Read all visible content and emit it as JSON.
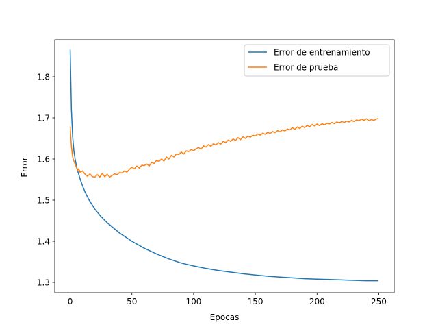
{
  "chart_data": {
    "type": "line",
    "title": "",
    "xlabel": "Epocas",
    "ylabel": "Error",
    "xlim": [
      -12.5,
      262.5
    ],
    "ylim": [
      1.275,
      1.89
    ],
    "xticks": [
      0,
      50,
      100,
      150,
      200,
      250
    ],
    "xtick_labels": [
      "0",
      "50",
      "100",
      "150",
      "200",
      "250"
    ],
    "yticks": [
      1.3,
      1.4,
      1.5,
      1.6,
      1.7,
      1.8
    ],
    "ytick_labels": [
      "1.3",
      "1.4",
      "1.5",
      "1.6",
      "1.7",
      "1.8"
    ],
    "grid": false,
    "legend_position": "top-right",
    "series": [
      {
        "name": "Error de entrenamiento",
        "color": "#1f77b4",
        "x": [
          0,
          1,
          2,
          3,
          4,
          5,
          6,
          8,
          10,
          12,
          15,
          20,
          25,
          30,
          40,
          50,
          60,
          70,
          80,
          90,
          100,
          110,
          120,
          130,
          140,
          150,
          160,
          170,
          180,
          190,
          200,
          210,
          220,
          230,
          240,
          249
        ],
        "y": [
          1.865,
          1.72,
          1.655,
          1.62,
          1.6,
          1.585,
          1.572,
          1.552,
          1.535,
          1.52,
          1.502,
          1.478,
          1.46,
          1.445,
          1.42,
          1.4,
          1.383,
          1.369,
          1.357,
          1.347,
          1.34,
          1.334,
          1.329,
          1.325,
          1.321,
          1.318,
          1.315,
          1.313,
          1.311,
          1.309,
          1.308,
          1.307,
          1.306,
          1.305,
          1.304,
          1.304
        ]
      },
      {
        "name": "Error de prueba",
        "color": "#ff7f0e",
        "x": [
          0,
          1,
          2,
          3,
          4,
          5,
          6,
          7,
          8,
          10,
          12,
          14,
          16,
          18,
          20,
          22,
          24,
          26,
          28,
          30,
          32,
          34,
          36,
          38,
          40,
          42,
          44,
          46,
          48,
          50,
          52,
          54,
          56,
          58,
          60,
          62,
          64,
          66,
          68,
          70,
          72,
          74,
          76,
          78,
          80,
          82,
          84,
          86,
          88,
          90,
          92,
          94,
          96,
          98,
          100,
          102,
          104,
          106,
          108,
          110,
          112,
          114,
          116,
          118,
          120,
          122,
          124,
          126,
          128,
          130,
          132,
          134,
          136,
          138,
          140,
          142,
          144,
          146,
          148,
          150,
          152,
          154,
          156,
          158,
          160,
          162,
          164,
          166,
          168,
          170,
          172,
          174,
          176,
          178,
          180,
          182,
          184,
          186,
          188,
          190,
          192,
          194,
          196,
          198,
          200,
          202,
          204,
          206,
          208,
          210,
          212,
          214,
          216,
          218,
          220,
          222,
          224,
          226,
          228,
          230,
          232,
          234,
          236,
          238,
          240,
          242,
          244,
          246,
          248,
          249
        ],
        "y": [
          1.678,
          1.63,
          1.605,
          1.595,
          1.588,
          1.58,
          1.572,
          1.576,
          1.568,
          1.571,
          1.563,
          1.558,
          1.564,
          1.557,
          1.556,
          1.562,
          1.556,
          1.565,
          1.557,
          1.563,
          1.556,
          1.56,
          1.564,
          1.562,
          1.567,
          1.566,
          1.571,
          1.568,
          1.575,
          1.58,
          1.576,
          1.583,
          1.578,
          1.585,
          1.584,
          1.588,
          1.583,
          1.592,
          1.589,
          1.597,
          1.594,
          1.6,
          1.595,
          1.605,
          1.6,
          1.609,
          1.605,
          1.612,
          1.611,
          1.617,
          1.612,
          1.62,
          1.618,
          1.623,
          1.62,
          1.625,
          1.628,
          1.624,
          1.632,
          1.629,
          1.635,
          1.631,
          1.637,
          1.634,
          1.64,
          1.636,
          1.643,
          1.64,
          1.646,
          1.643,
          1.649,
          1.645,
          1.652,
          1.647,
          1.654,
          1.65,
          1.656,
          1.653,
          1.658,
          1.656,
          1.661,
          1.658,
          1.663,
          1.66,
          1.665,
          1.662,
          1.667,
          1.664,
          1.669,
          1.666,
          1.671,
          1.668,
          1.673,
          1.671,
          1.676,
          1.672,
          1.678,
          1.674,
          1.68,
          1.676,
          1.682,
          1.678,
          1.684,
          1.68,
          1.685,
          1.681,
          1.686,
          1.683,
          1.687,
          1.685,
          1.689,
          1.686,
          1.69,
          1.688,
          1.691,
          1.689,
          1.692,
          1.69,
          1.694,
          1.691,
          1.695,
          1.693,
          1.697,
          1.694,
          1.698,
          1.693,
          1.696,
          1.694,
          1.697,
          1.698
        ]
      }
    ]
  }
}
